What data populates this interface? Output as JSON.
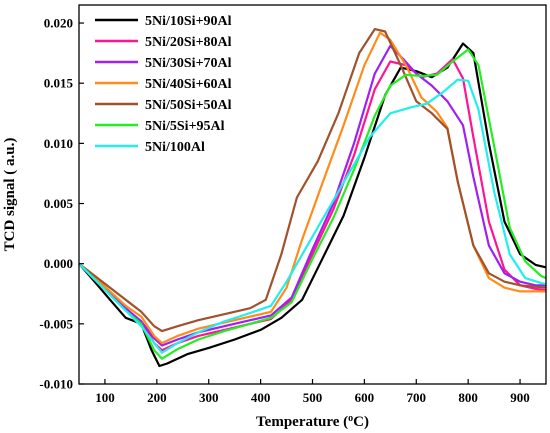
{
  "chart_data": {
    "type": "line",
    "title": "",
    "xlabel": "Temperature (",
    "xlabel_sup": "o",
    "xlabel_suffix": "C)",
    "ylabel": "TCD signal ( a.u.)",
    "xlim": [
      50,
      950
    ],
    "ylim": [
      -0.01,
      0.0215
    ],
    "xticks": [
      100,
      200,
      300,
      400,
      500,
      600,
      700,
      800,
      900
    ],
    "xtick_labels": [
      "100",
      "200",
      "300",
      "400",
      "500",
      "600",
      "700",
      "800",
      "900"
    ],
    "yticks": [
      -0.01,
      -0.005,
      0.0,
      0.005,
      0.01,
      0.015,
      0.02
    ],
    "ytick_labels": [
      "-0.010",
      "-0.005",
      "0.000",
      "0.005",
      "0.010",
      "0.015",
      "0.020"
    ],
    "grid": false,
    "legend_position": "top-left",
    "series": [
      {
        "name": "5Ni/10Si+90Al",
        "color": "#000000",
        "points": [
          [
            50,
            0
          ],
          [
            80,
            -0.0015
          ],
          [
            110,
            -0.003
          ],
          [
            140,
            -0.0045
          ],
          [
            170,
            -0.005
          ],
          [
            190,
            -0.0072
          ],
          [
            205,
            -0.0085
          ],
          [
            220,
            -0.0083
          ],
          [
            260,
            -0.0075
          ],
          [
            300,
            -0.007
          ],
          [
            350,
            -0.0063
          ],
          [
            400,
            -0.0055
          ],
          [
            440,
            -0.0045
          ],
          [
            480,
            -0.003
          ],
          [
            520,
            0.0005
          ],
          [
            560,
            0.004
          ],
          [
            600,
            0.0088
          ],
          [
            640,
            0.014
          ],
          [
            670,
            0.0163
          ],
          [
            700,
            0.016
          ],
          [
            730,
            0.0155
          ],
          [
            760,
            0.0163
          ],
          [
            790,
            0.0183
          ],
          [
            810,
            0.0175
          ],
          [
            840,
            0.01
          ],
          [
            870,
            0.0035
          ],
          [
            900,
            0.0008
          ],
          [
            930,
            -0.0001
          ],
          [
            950,
            -0.0003
          ]
        ]
      },
      {
        "name": "5Ni/20Si+80Al",
        "color": "#ff1493",
        "points": [
          [
            50,
            0
          ],
          [
            80,
            -0.0012
          ],
          [
            110,
            -0.0025
          ],
          [
            140,
            -0.0038
          ],
          [
            170,
            -0.0048
          ],
          [
            195,
            -0.0066
          ],
          [
            210,
            -0.0072
          ],
          [
            240,
            -0.0066
          ],
          [
            280,
            -0.006
          ],
          [
            330,
            -0.0055
          ],
          [
            380,
            -0.005
          ],
          [
            420,
            -0.0046
          ],
          [
            460,
            -0.003
          ],
          [
            500,
            0.0008
          ],
          [
            540,
            0.0045
          ],
          [
            580,
            0.009
          ],
          [
            620,
            0.0145
          ],
          [
            650,
            0.0168
          ],
          [
            680,
            0.0165
          ],
          [
            710,
            0.0155
          ],
          [
            740,
            0.0158
          ],
          [
            770,
            0.017
          ],
          [
            790,
            0.0154
          ],
          [
            810,
            0.0105
          ],
          [
            840,
            0.0035
          ],
          [
            870,
            -0.0005
          ],
          [
            900,
            -0.0018
          ],
          [
            930,
            -0.0021
          ],
          [
            950,
            -0.0022
          ]
        ]
      },
      {
        "name": "5Ni/30Si+70Al",
        "color": "#a020f0",
        "points": [
          [
            50,
            0
          ],
          [
            80,
            -0.0012
          ],
          [
            110,
            -0.0025
          ],
          [
            140,
            -0.0037
          ],
          [
            170,
            -0.0048
          ],
          [
            195,
            -0.0062
          ],
          [
            210,
            -0.0068
          ],
          [
            240,
            -0.0063
          ],
          [
            280,
            -0.0057
          ],
          [
            330,
            -0.0052
          ],
          [
            380,
            -0.0047
          ],
          [
            420,
            -0.0043
          ],
          [
            460,
            -0.0028
          ],
          [
            500,
            0.0012
          ],
          [
            540,
            0.005
          ],
          [
            580,
            0.01
          ],
          [
            620,
            0.0158
          ],
          [
            650,
            0.0181
          ],
          [
            675,
            0.017
          ],
          [
            700,
            0.0158
          ],
          [
            730,
            0.0148
          ],
          [
            760,
            0.0135
          ],
          [
            790,
            0.0115
          ],
          [
            810,
            0.0072
          ],
          [
            840,
            0.0015
          ],
          [
            870,
            -0.0008
          ],
          [
            900,
            -0.0015
          ],
          [
            930,
            -0.0018
          ],
          [
            950,
            -0.0018
          ]
        ]
      },
      {
        "name": "5Ni/40Si+60Al",
        "color": "#ff8c1a",
        "points": [
          [
            50,
            0
          ],
          [
            80,
            -0.0011
          ],
          [
            110,
            -0.0023
          ],
          [
            140,
            -0.0035
          ],
          [
            170,
            -0.0044
          ],
          [
            195,
            -0.006
          ],
          [
            210,
            -0.0066
          ],
          [
            240,
            -0.006
          ],
          [
            280,
            -0.0054
          ],
          [
            330,
            -0.0049
          ],
          [
            380,
            -0.0044
          ],
          [
            420,
            -0.004
          ],
          [
            450,
            -0.002
          ],
          [
            480,
            0.002
          ],
          [
            520,
            0.0068
          ],
          [
            560,
            0.0115
          ],
          [
            600,
            0.0165
          ],
          [
            630,
            0.0192
          ],
          [
            650,
            0.0186
          ],
          [
            680,
            0.0165
          ],
          [
            710,
            0.0138
          ],
          [
            740,
            0.0126
          ],
          [
            760,
            0.0113
          ],
          [
            780,
            0.0068
          ],
          [
            810,
            0.0015
          ],
          [
            840,
            -0.0012
          ],
          [
            870,
            -0.002
          ],
          [
            900,
            -0.0023
          ],
          [
            950,
            -0.0023
          ]
        ]
      },
      {
        "name": "5Ni/50Si+50Al",
        "color": "#a0522d",
        "points": [
          [
            50,
            0
          ],
          [
            80,
            -0.001
          ],
          [
            110,
            -0.002
          ],
          [
            140,
            -0.003
          ],
          [
            170,
            -0.004
          ],
          [
            195,
            -0.0052
          ],
          [
            210,
            -0.0056
          ],
          [
            240,
            -0.0052
          ],
          [
            280,
            -0.0047
          ],
          [
            330,
            -0.0042
          ],
          [
            380,
            -0.0037
          ],
          [
            410,
            -0.003
          ],
          [
            440,
            0.0008
          ],
          [
            470,
            0.0055
          ],
          [
            510,
            0.0085
          ],
          [
            550,
            0.0125
          ],
          [
            590,
            0.0175
          ],
          [
            620,
            0.0195
          ],
          [
            640,
            0.0193
          ],
          [
            670,
            0.0165
          ],
          [
            700,
            0.0135
          ],
          [
            730,
            0.0125
          ],
          [
            760,
            0.0112
          ],
          [
            780,
            0.0068
          ],
          [
            810,
            0.0015
          ],
          [
            840,
            -0.0008
          ],
          [
            870,
            -0.0015
          ],
          [
            900,
            -0.0018
          ],
          [
            950,
            -0.002
          ]
        ]
      },
      {
        "name": "5Ni/5Si+95Al",
        "color": "#22ee22",
        "points": [
          [
            50,
            0
          ],
          [
            80,
            -0.0013
          ],
          [
            110,
            -0.0026
          ],
          [
            140,
            -0.0039
          ],
          [
            170,
            -0.005
          ],
          [
            195,
            -0.0072
          ],
          [
            210,
            -0.0079
          ],
          [
            240,
            -0.0071
          ],
          [
            280,
            -0.0063
          ],
          [
            330,
            -0.0056
          ],
          [
            380,
            -0.005
          ],
          [
            420,
            -0.0045
          ],
          [
            460,
            -0.0032
          ],
          [
            500,
            0.0004
          ],
          [
            540,
            0.0038
          ],
          [
            580,
            0.0078
          ],
          [
            620,
            0.0123
          ],
          [
            650,
            0.0148
          ],
          [
            680,
            0.0157
          ],
          [
            710,
            0.0156
          ],
          [
            740,
            0.0157
          ],
          [
            770,
            0.0168
          ],
          [
            800,
            0.0178
          ],
          [
            820,
            0.0165
          ],
          [
            850,
            0.0098
          ],
          [
            880,
            0.003
          ],
          [
            910,
            0.0002
          ],
          [
            940,
            -0.001
          ],
          [
            950,
            -0.0012
          ]
        ]
      },
      {
        "name": "5Ni/100Al",
        "color": "#22eeee",
        "points": [
          [
            50,
            0
          ],
          [
            80,
            -0.0013
          ],
          [
            110,
            -0.0026
          ],
          [
            140,
            -0.0039
          ],
          [
            170,
            -0.0052
          ],
          [
            195,
            -0.0066
          ],
          [
            210,
            -0.0074
          ],
          [
            240,
            -0.0066
          ],
          [
            280,
            -0.0057
          ],
          [
            330,
            -0.0048
          ],
          [
            380,
            -0.0041
          ],
          [
            420,
            -0.0035
          ],
          [
            450,
            -0.0015
          ],
          [
            490,
            0.0015
          ],
          [
            530,
            0.0045
          ],
          [
            570,
            0.0075
          ],
          [
            610,
            0.0105
          ],
          [
            650,
            0.0125
          ],
          [
            690,
            0.013
          ],
          [
            720,
            0.0133
          ],
          [
            750,
            0.0142
          ],
          [
            780,
            0.0153
          ],
          [
            800,
            0.0152
          ],
          [
            820,
            0.0128
          ],
          [
            850,
            0.006
          ],
          [
            880,
            0.0008
          ],
          [
            910,
            -0.0012
          ],
          [
            940,
            -0.0016
          ],
          [
            950,
            -0.0017
          ]
        ]
      }
    ]
  }
}
